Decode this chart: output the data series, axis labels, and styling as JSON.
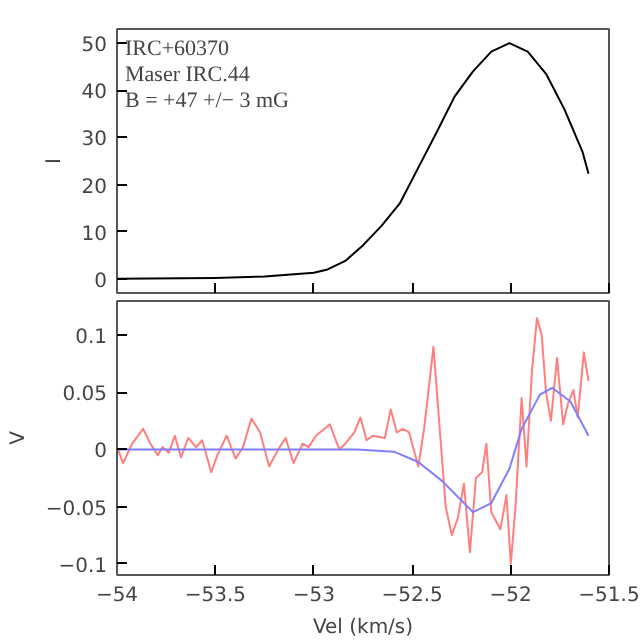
{
  "chart_data": [
    {
      "type": "line",
      "ylabel": "I",
      "annotations": [
        "IRC+60370",
        "Maser IRC.44",
        "B = +47 +/− 3 mG"
      ],
      "tick_labels": "y",
      "grid": false,
      "xlim": [
        -54,
        -51.5
      ],
      "xticks": [
        -54,
        -53.5,
        -53,
        -52.5,
        -52,
        -51.5
      ],
      "ylim": [
        -3,
        53
      ],
      "yticks": [
        0,
        10,
        20,
        30,
        40,
        50
      ],
      "series": [
        {
          "color": "#000000",
          "x": [
            -54,
            -53.5,
            -53.25,
            -53.0,
            -52.93,
            -52.84,
            -52.748,
            -52.655,
            -52.563,
            -52.469,
            -52.377,
            -52.284,
            -52.191,
            -52.098,
            -52.006,
            -51.913,
            -51.82,
            -51.727,
            -51.635,
            -51.604
          ],
          "values": [
            0,
            0.2,
            0.5,
            1.3,
            2.0,
            3.8,
            7.2,
            11.3,
            16,
            23.6,
            31,
            38.7,
            44,
            48.2,
            50,
            48.2,
            43.5,
            36,
            27,
            22.3
          ]
        }
      ]
    },
    {
      "type": "line",
      "ylabel": "V",
      "xlabel": "Vel (km/s)",
      "grid": false,
      "xlim": [
        -54,
        -51.5
      ],
      "xticks": [
        -54,
        -53.5,
        -53,
        -52.5,
        -52,
        -51.5
      ],
      "ylim": [
        -0.11,
        0.13
      ],
      "yticks": [
        -0.1,
        -0.05,
        0,
        0.05,
        0.1
      ],
      "series": [
        {
          "color": "#ff7f7f",
          "x": [
            -54,
            -53.969,
            -53.923,
            -53.867,
            -53.83,
            -53.793,
            -53.768,
            -53.737,
            -53.706,
            -53.675,
            -53.638,
            -53.598,
            -53.567,
            -53.521,
            -53.49,
            -53.443,
            -53.397,
            -53.36,
            -53.317,
            -53.273,
            -53.227,
            -53.181,
            -53.143,
            -53.103,
            -53.057,
            -53.026,
            -52.989,
            -52.918,
            -52.871,
            -52.84,
            -52.794,
            -52.763,
            -52.732,
            -52.701,
            -52.639,
            -52.609,
            -52.578,
            -52.547,
            -52.516,
            -52.469,
            -52.438,
            -52.392,
            -52.361,
            -52.33,
            -52.299,
            -52.268,
            -52.237,
            -52.207,
            -52.176,
            -52.145,
            -52.123,
            -52.098,
            -52.052,
            -52.021,
            -51.999,
            -51.975,
            -51.944,
            -51.919,
            -51.891,
            -51.866,
            -51.842,
            -51.82,
            -51.795,
            -51.764,
            -51.733,
            -51.709,
            -51.681,
            -51.659,
            -51.628,
            -51.604
          ],
          "values": [
            0.002,
            -0.012,
            0.005,
            0.018,
            0.005,
            -0.005,
            0.002,
            -0.003,
            0.012,
            -0.007,
            0.01,
            0.002,
            0.008,
            -0.02,
            -0.005,
            0.012,
            -0.008,
            0.002,
            0.027,
            0.015,
            -0.015,
            0.0,
            0.01,
            -0.012,
            0.005,
            0.002,
            0.012,
            0.022,
            0.0,
            0.005,
            0.015,
            0.028,
            0.008,
            0.012,
            0.01,
            0.035,
            0.015,
            0.018,
            0.015,
            -0.015,
            0.02,
            0.09,
            0.02,
            -0.05,
            -0.075,
            -0.06,
            -0.03,
            -0.09,
            -0.025,
            -0.02,
            0.005,
            -0.055,
            -0.07,
            -0.04,
            -0.1,
            -0.05,
            0.045,
            -0.015,
            0.07,
            0.115,
            0.1,
            0.05,
            0.025,
            0.08,
            0.022,
            0.04,
            0.052,
            0.028,
            0.085,
            0.06
          ]
        },
        {
          "color": "#7f7fff",
          "x": [
            -54,
            -52.779,
            -52.593,
            -52.469,
            -52.346,
            -52.191,
            -52.098,
            -52.006,
            -51.944,
            -51.851,
            -51.789,
            -51.696,
            -51.604
          ],
          "values": [
            0,
            0,
            -0.002,
            -0.011,
            -0.028,
            -0.055,
            -0.047,
            -0.017,
            0.018,
            0.048,
            0.054,
            0.042,
            0.012
          ]
        }
      ]
    }
  ]
}
